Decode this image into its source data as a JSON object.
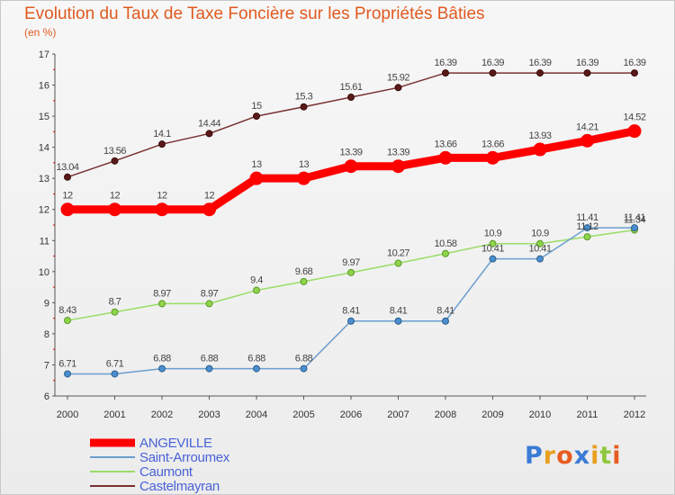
{
  "chart_data": {
    "type": "line",
    "title": "Evolution du Taux de Taxe Foncière sur les Propriétés Bâties",
    "subtitle": "(en %)",
    "xlabel": "",
    "ylabel": "",
    "x": [
      "2000",
      "2001",
      "2002",
      "2003",
      "2004",
      "2005",
      "2006",
      "2007",
      "2008",
      "2009",
      "2010",
      "2011",
      "2012"
    ],
    "ylim": [
      6,
      17
    ],
    "yticks": [
      "6",
      "7",
      "8",
      "9",
      "10",
      "11",
      "12",
      "13",
      "14",
      "15",
      "16",
      "17"
    ],
    "grid": false,
    "legend_position": "bottom-left",
    "series": [
      {
        "name": "ANGEVILLE",
        "color": "#ff0000",
        "values": [
          12,
          12,
          12,
          12,
          13,
          13,
          13.39,
          13.39,
          13.66,
          13.66,
          13.93,
          14.21,
          14.52
        ],
        "labels": [
          "12",
          "12",
          "12",
          "12",
          "13",
          "13",
          "13.39",
          "13.39",
          "13.66",
          "13.66",
          "13.93",
          "14.21",
          "14.52"
        ]
      },
      {
        "name": "Saint-Arroumex",
        "color": "#6a9ecf",
        "values": [
          6.71,
          6.71,
          6.88,
          6.88,
          6.88,
          6.88,
          8.41,
          8.41,
          8.41,
          10.41,
          10.41,
          11.41,
          11.41
        ],
        "labels": [
          "6.71",
          "6.71",
          "6.88",
          "6.88",
          "6.88",
          "6.88",
          "8.41",
          "8.41",
          "8.41",
          "10.41",
          "10.41",
          "11.41",
          "11.41"
        ]
      },
      {
        "name": "Caumont",
        "color": "#99dd66",
        "values": [
          8.43,
          8.7,
          8.97,
          8.97,
          9.4,
          9.68,
          9.97,
          10.27,
          10.58,
          10.9,
          10.9,
          11.12,
          11.34
        ],
        "labels": [
          "8.43",
          "8.7",
          "8.97",
          "8.97",
          "9.4",
          "9.68",
          "9.97",
          "10.27",
          "10.58",
          "10.9",
          "10.9",
          "11.12",
          "11.34"
        ]
      },
      {
        "name": "Castelmayran",
        "color": "#7a3030",
        "values": [
          13.04,
          13.56,
          14.1,
          14.44,
          15,
          15.3,
          15.61,
          15.92,
          16.39,
          16.39,
          16.39,
          16.39,
          16.39
        ],
        "labels": [
          "13.04",
          "13.56",
          "14.1",
          "14.44",
          "15",
          "15.3",
          "15.61",
          "15.92",
          "16.39",
          "16.39",
          "16.39",
          "16.39",
          "16.39"
        ]
      }
    ]
  },
  "logo": {
    "letters": [
      "P",
      "r",
      "o",
      "x",
      "i",
      "t",
      "i"
    ],
    "colors": [
      "#3a7bd5",
      "#e8a020",
      "#e85c20",
      "#3a7bd5",
      "#e8a020",
      "#8fc83c",
      "#e85c20"
    ]
  }
}
